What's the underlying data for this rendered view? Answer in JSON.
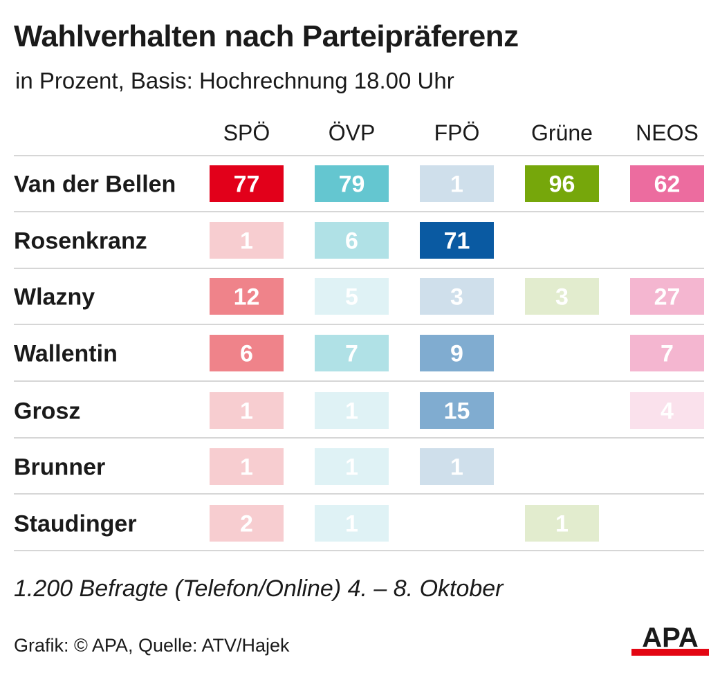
{
  "title": "Wahlverhalten nach Parteipräferenz",
  "subtitle": "in Prozent, Basis: Hochrechnung 18.00 Uhr",
  "footnote": "1.200 Befragte (Telefon/Online) 4. – 8. Oktober",
  "credit": "Grafik: © APA, Quelle: ATV/Hajek",
  "logo_text": "APA",
  "chart_data": {
    "type": "heatmap",
    "columns": [
      "SPÖ",
      "ÖVP",
      "FPÖ",
      "Grüne",
      "NEOS"
    ],
    "rows": [
      "Van der Bellen",
      "Rosenkranz",
      "Wlazny",
      "Wallentin",
      "Grosz",
      "Brunner",
      "Staudinger"
    ],
    "values": [
      [
        77,
        79,
        1,
        96,
        62
      ],
      [
        1,
        6,
        71,
        null,
        null
      ],
      [
        12,
        5,
        3,
        3,
        27
      ],
      [
        6,
        7,
        9,
        null,
        7
      ],
      [
        1,
        1,
        15,
        null,
        4
      ],
      [
        1,
        1,
        1,
        null,
        null
      ],
      [
        2,
        1,
        null,
        1,
        null
      ]
    ],
    "colors": {
      "SPÖ": [
        "#f7cdd0",
        "#ef838a",
        "#e2001a"
      ],
      "ÖVP": [
        "#dff2f5",
        "#b0e1e6",
        "#64c6d0"
      ],
      "FPÖ": [
        "#cfdfeb",
        "#80acd0",
        "#0a5aa2"
      ],
      "Grüne": [
        "#e2ecce",
        "#a9c56b",
        "#76a70b"
      ],
      "NEOS": [
        "#fae1ec",
        "#f4b6d0",
        "#ec6c9f"
      ]
    },
    "logo_colors": {
      "text": "#1a1a1a",
      "bar": "#e30613"
    }
  }
}
